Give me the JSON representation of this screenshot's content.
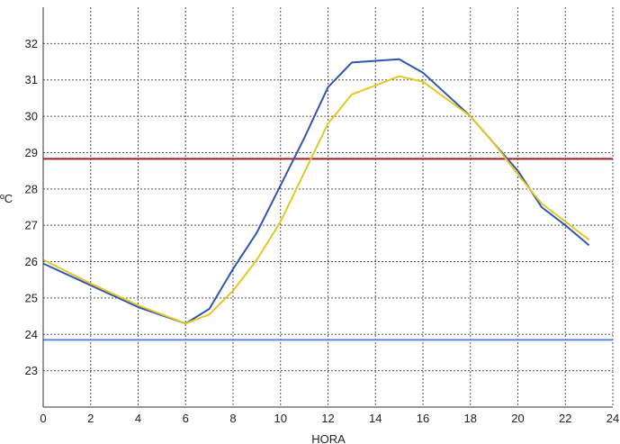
{
  "chart_data": {
    "type": "line",
    "xlabel": "HORA",
    "ylabel": "ºC",
    "xlim": [
      0,
      24
    ],
    "ylim": [
      22,
      33
    ],
    "xticks": [
      0,
      2,
      4,
      6,
      8,
      10,
      12,
      14,
      16,
      18,
      20,
      22,
      24
    ],
    "yticks": [
      23,
      24,
      25,
      26,
      27,
      28,
      29,
      30,
      31,
      32
    ],
    "grid": "dotted",
    "legend": "none",
    "series": [
      {
        "color": "#2f55b4",
        "x": [
          0,
          2,
          4,
          6,
          7,
          8,
          9,
          10,
          11,
          12,
          13,
          15,
          16,
          18,
          20,
          21,
          22,
          23
        ],
        "y": [
          25.95,
          25.35,
          24.75,
          24.3,
          24.7,
          25.8,
          26.8,
          28.1,
          29.4,
          30.8,
          31.48,
          31.57,
          31.2,
          30.0,
          28.5,
          27.5,
          27.0,
          26.45
        ]
      },
      {
        "color": "#e4c724",
        "x": [
          0,
          2,
          4,
          6,
          7,
          8,
          9,
          10,
          11,
          12,
          13,
          15,
          16,
          18,
          19,
          20,
          21,
          22,
          23
        ],
        "y": [
          26.05,
          25.4,
          24.8,
          24.3,
          24.55,
          25.2,
          26.05,
          27.1,
          28.45,
          29.8,
          30.6,
          31.1,
          30.95,
          30.0,
          29.25,
          28.4,
          27.6,
          27.1,
          26.6
        ]
      }
    ],
    "reference_lines": [
      {
        "y": 28.83,
        "color": "#a01e1e"
      },
      {
        "y": 23.85,
        "color": "#5b86d6"
      }
    ]
  }
}
